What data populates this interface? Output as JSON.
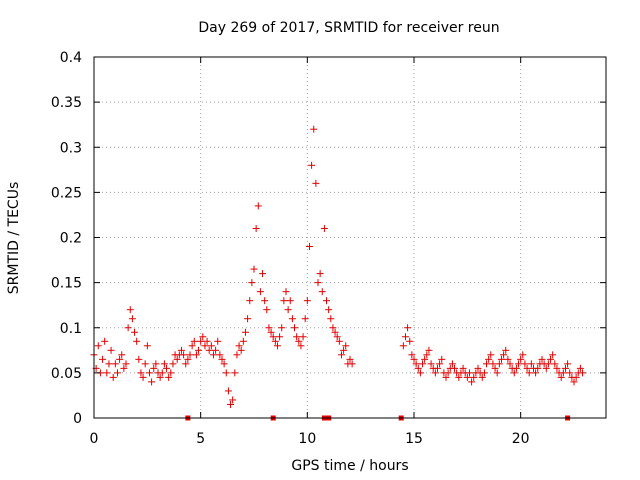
{
  "chart_data": {
    "type": "scatter",
    "title": "Day 269 of 2017, SRMTID for receiver reun",
    "xlabel": "GPS time / hours",
    "ylabel": "SRMTID / TECUs",
    "xlim": [
      0,
      24
    ],
    "ylim": [
      0,
      0.4
    ],
    "xticks": [
      0,
      5,
      10,
      15,
      20
    ],
    "xtick_labels": [
      "0",
      "5",
      "10",
      "15",
      "20"
    ],
    "yticks": [
      0,
      0.05,
      0.1,
      0.15,
      0.2,
      0.25,
      0.3,
      0.35,
      0.4
    ],
    "ytick_labels": [
      "0",
      "0.05",
      "0.1",
      "0.15",
      "0.2",
      "0.25",
      "0.3",
      "0.35",
      "0.4"
    ],
    "grid": true,
    "marker": "+",
    "color": "#e00000",
    "series": [
      {
        "name": "SRMTID",
        "segments": [
          {
            "x": [
              0.0,
              0.1,
              0.2,
              0.3,
              0.4,
              0.5,
              0.6,
              0.7,
              0.8,
              0.9,
              1.0,
              1.1,
              1.2,
              1.3,
              1.4,
              1.5,
              1.6,
              1.7,
              1.8,
              1.9,
              2.0,
              2.1,
              2.2,
              2.3,
              2.4,
              2.5,
              2.6,
              2.7,
              2.8,
              2.9,
              3.0,
              3.1,
              3.2,
              3.3,
              3.4,
              3.5,
              3.6,
              3.7,
              3.8,
              3.9,
              4.0,
              4.1,
              4.2,
              4.3,
              4.4,
              4.5,
              4.6,
              4.7,
              4.8,
              4.9,
              5.0,
              5.1,
              5.2,
              5.3,
              5.4,
              5.5,
              5.6,
              5.7,
              5.8,
              5.9,
              6.0,
              6.1,
              6.2,
              6.3,
              6.4,
              6.5,
              6.6,
              6.7,
              6.8,
              6.9,
              7.0,
              7.1,
              7.2,
              7.3,
              7.4,
              7.5,
              7.6,
              7.7,
              7.8,
              7.9,
              8.0,
              8.1,
              8.2,
              8.3,
              8.4,
              8.5,
              8.6,
              8.7,
              8.8,
              8.9,
              9.0,
              9.1,
              9.2,
              9.3,
              9.4,
              9.5,
              9.6,
              9.7,
              9.8,
              9.9,
              10.0,
              10.1,
              10.2,
              10.3,
              10.4,
              10.5,
              10.6,
              10.7,
              10.8,
              10.9,
              11.0,
              11.1,
              11.2,
              11.3,
              11.4,
              11.5,
              11.6,
              11.7,
              11.8,
              11.9,
              12.0,
              12.1
            ],
            "y": [
              0.07,
              0.055,
              0.08,
              0.05,
              0.065,
              0.085,
              0.05,
              0.06,
              0.075,
              0.045,
              0.06,
              0.05,
              0.065,
              0.07,
              0.055,
              0.06,
              0.1,
              0.12,
              0.11,
              0.095,
              0.085,
              0.065,
              0.05,
              0.045,
              0.06,
              0.08,
              0.05,
              0.04,
              0.055,
              0.06,
              0.05,
              0.045,
              0.05,
              0.06,
              0.055,
              0.045,
              0.05,
              0.06,
              0.07,
              0.065,
              0.07,
              0.075,
              0.07,
              0.06,
              0.065,
              0.07,
              0.08,
              0.085,
              0.07,
              0.075,
              0.085,
              0.09,
              0.08,
              0.085,
              0.075,
              0.08,
              0.07,
              0.075,
              0.085,
              0.07,
              0.065,
              0.06,
              0.05,
              0.03,
              0.015,
              0.02,
              0.05,
              0.07,
              0.08,
              0.075,
              0.085,
              0.095,
              0.11,
              0.13,
              0.15,
              0.165,
              0.21,
              0.235,
              0.14,
              0.16,
              0.13,
              0.12,
              0.1,
              0.095,
              0.09,
              0.085,
              0.08,
              0.09,
              0.1,
              0.13,
              0.14,
              0.12,
              0.13,
              0.11,
              0.1,
              0.09,
              0.085,
              0.08,
              0.09,
              0.11,
              0.13,
              0.19,
              0.28,
              0.32,
              0.26,
              0.15,
              0.16,
              0.14,
              0.21,
              0.13,
              0.12,
              0.11,
              0.1,
              0.095,
              0.09,
              0.085,
              0.07,
              0.075,
              0.08,
              0.06,
              0.065,
              0.06
            ]
          },
          {
            "x": [
              14.5,
              14.6,
              14.7,
              14.8,
              14.9,
              15.0,
              15.1,
              15.2,
              15.3,
              15.4,
              15.5,
              15.6,
              15.7,
              15.8,
              15.9,
              16.0,
              16.1,
              16.2,
              16.3,
              16.4,
              16.5,
              16.6,
              16.7,
              16.8,
              16.9,
              17.0,
              17.1,
              17.2,
              17.3,
              17.4,
              17.5,
              17.6,
              17.7,
              17.8,
              17.9,
              18.0,
              18.1,
              18.2,
              18.3,
              18.4,
              18.5,
              18.6,
              18.7,
              18.8,
              18.9,
              19.0,
              19.1,
              19.2,
              19.3,
              19.4,
              19.5,
              19.6,
              19.7,
              19.8,
              19.9,
              20.0,
              20.1,
              20.2,
              20.3,
              20.4,
              20.5,
              20.6,
              20.7,
              20.8,
              20.9,
              21.0,
              21.1,
              21.2,
              21.3,
              21.4,
              21.5,
              21.6,
              21.7,
              21.8,
              21.9,
              22.0,
              22.1,
              22.2,
              22.3,
              22.4,
              22.5,
              22.6,
              22.7,
              22.8,
              22.9
            ],
            "y": [
              0.08,
              0.09,
              0.1,
              0.085,
              0.07,
              0.065,
              0.06,
              0.055,
              0.05,
              0.06,
              0.065,
              0.07,
              0.075,
              0.06,
              0.055,
              0.05,
              0.055,
              0.06,
              0.065,
              0.05,
              0.045,
              0.05,
              0.055,
              0.06,
              0.055,
              0.05,
              0.045,
              0.05,
              0.055,
              0.05,
              0.045,
              0.05,
              0.04,
              0.045,
              0.05,
              0.055,
              0.05,
              0.045,
              0.05,
              0.06,
              0.065,
              0.07,
              0.06,
              0.055,
              0.05,
              0.06,
              0.065,
              0.07,
              0.075,
              0.065,
              0.06,
              0.055,
              0.05,
              0.055,
              0.06,
              0.065,
              0.07,
              0.06,
              0.055,
              0.05,
              0.06,
              0.055,
              0.05,
              0.055,
              0.06,
              0.065,
              0.06,
              0.055,
              0.06,
              0.065,
              0.07,
              0.06,
              0.055,
              0.05,
              0.045,
              0.05,
              0.055,
              0.06,
              0.05,
              0.045,
              0.04,
              0.045,
              0.05,
              0.055,
              0.05
            ]
          }
        ]
      }
    ],
    "gap_markers_x": [
      4.4,
      8.4,
      10.8,
      11.0,
      14.4,
      22.2
    ]
  }
}
